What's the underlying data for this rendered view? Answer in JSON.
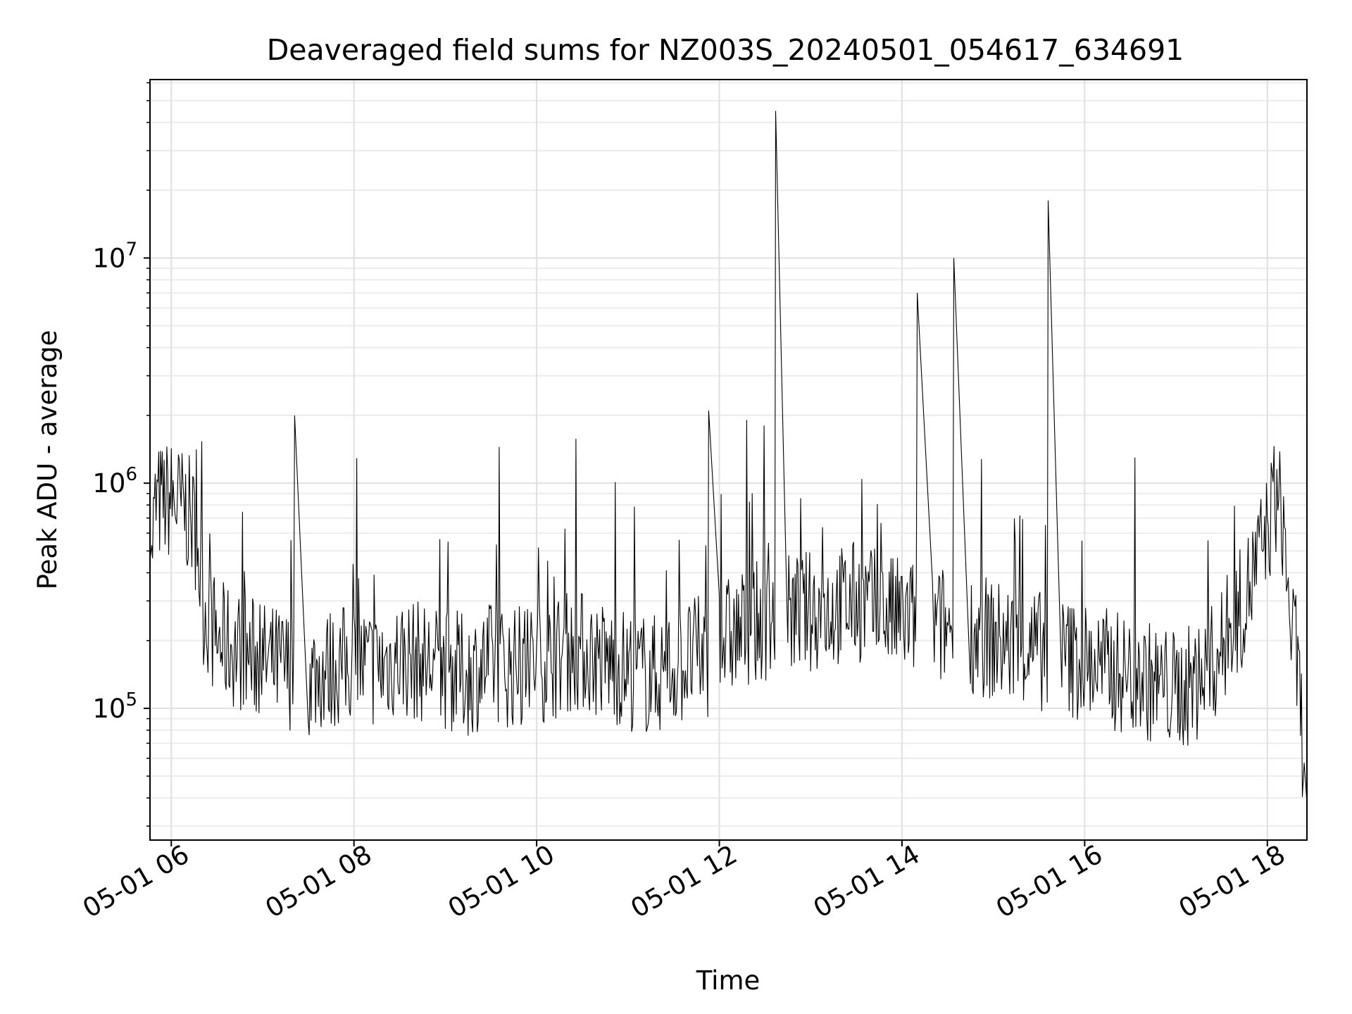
{
  "chart_data": {
    "type": "line",
    "title": "Deaveraged field sums for NZ003S_20240501_054617_634691",
    "xlabel": "Time",
    "ylabel": "Peak ADU - average",
    "x_range": [
      "2024-05-01T05:46",
      "2024-05-01T18:26"
    ],
    "ylim": [
      26000,
      62000000
    ],
    "y_scale": "log",
    "grid": "major-and-minor",
    "legend": "none",
    "line_color": "#000000",
    "x_ticks": [
      {
        "time": "2024-05-01T06:00",
        "label": "05-01 06"
      },
      {
        "time": "2024-05-01T08:00",
        "label": "05-01 08"
      },
      {
        "time": "2024-05-01T10:00",
        "label": "05-01 10"
      },
      {
        "time": "2024-05-01T12:00",
        "label": "05-01 12"
      },
      {
        "time": "2024-05-01T14:00",
        "label": "05-01 14"
      },
      {
        "time": "2024-05-01T16:00",
        "label": "05-01 16"
      },
      {
        "time": "2024-05-01T18:00",
        "label": "05-01 18"
      }
    ],
    "y_ticks": [
      {
        "value": 100000,
        "base": "10",
        "exp": "5"
      },
      {
        "value": 1000000,
        "base": "10",
        "exp": "6"
      },
      {
        "value": 10000000,
        "base": "10",
        "exp": "7"
      }
    ],
    "series": [
      {
        "x": [
          "2024-05-01T05:46",
          "2024-05-01T05:50",
          "2024-05-01T06:00",
          "2024-05-01T06:10",
          "2024-05-01T06:17",
          "2024-05-01T06:20",
          "2024-05-01T06:30",
          "2024-05-01T06:45",
          "2024-05-01T07:00",
          "2024-05-01T07:15",
          "2024-05-01T07:21",
          "2024-05-01T07:30",
          "2024-05-01T07:45",
          "2024-05-01T08:00",
          "2024-05-01T08:15",
          "2024-05-01T08:30",
          "2024-05-01T08:45",
          "2024-05-01T09:00",
          "2024-05-01T09:15",
          "2024-05-01T09:30",
          "2024-05-01T09:45",
          "2024-05-01T10:00",
          "2024-05-01T10:15",
          "2024-05-01T10:30",
          "2024-05-01T10:45",
          "2024-05-01T11:00",
          "2024-05-01T11:15",
          "2024-05-01T11:30",
          "2024-05-01T11:45",
          "2024-05-01T11:53",
          "2024-05-01T12:00",
          "2024-05-01T12:15",
          "2024-05-01T12:30",
          "2024-05-01T12:37",
          "2024-05-01T12:45",
          "2024-05-01T13:00",
          "2024-05-01T13:15",
          "2024-05-01T13:30",
          "2024-05-01T13:45",
          "2024-05-01T14:00",
          "2024-05-01T14:10",
          "2024-05-01T14:20",
          "2024-05-01T14:34",
          "2024-05-01T14:45",
          "2024-05-01T15:00",
          "2024-05-01T15:15",
          "2024-05-01T15:30",
          "2024-05-01T15:36",
          "2024-05-01T15:45",
          "2024-05-01T16:00",
          "2024-05-01T16:15",
          "2024-05-01T16:30",
          "2024-05-01T16:45",
          "2024-05-01T17:00",
          "2024-05-01T17:15",
          "2024-05-01T17:30",
          "2024-05-01T17:45",
          "2024-05-01T18:00",
          "2024-05-01T18:05",
          "2024-05-01T18:10",
          "2024-05-01T18:15",
          "2024-05-01T18:20",
          "2024-05-01T18:26"
        ],
        "y": [
          450000,
          800000,
          850000,
          750000,
          600000,
          300000,
          200000,
          180000,
          160000,
          150000,
          2000000,
          140000,
          150000,
          160000,
          150000,
          170000,
          160000,
          150000,
          140000,
          160000,
          150000,
          160000,
          170000,
          180000,
          160000,
          150000,
          140000,
          150000,
          170000,
          2100000,
          200000,
          220000,
          250000,
          45000000,
          260000,
          270000,
          280000,
          300000,
          270000,
          250000,
          7000000,
          230000,
          10000000,
          220000,
          200000,
          190000,
          180000,
          18000000,
          170000,
          160000,
          150000,
          140000,
          130000,
          120000,
          130000,
          180000,
          300000,
          600000,
          900000,
          700000,
          250000,
          150000,
          38000
        ]
      }
    ]
  }
}
